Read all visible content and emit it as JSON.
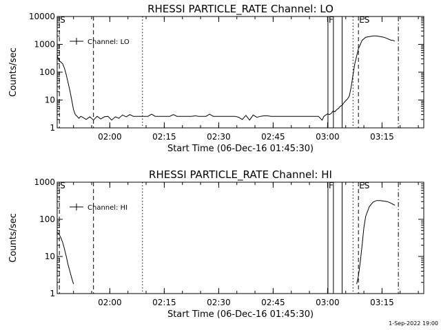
{
  "footer": {
    "timestamp": "1-Sep-2022 19:00"
  },
  "chart_data": [
    {
      "type": "line",
      "title": "RHESSI PARTICLE_RATE Channel: LO",
      "xlabel": "Start Time (06-Dec-16 01:45:30)",
      "ylabel": "Counts/sec",
      "yscale": "log",
      "ylim": [
        1,
        10000
      ],
      "xlim_min": [
        0,
        101
      ],
      "xtick_labels": [
        "02:00",
        "02:15",
        "02:30",
        "02:45",
        "03:00",
        "03:15"
      ],
      "xtick_min": [
        14.5,
        29.5,
        44.5,
        59.5,
        74.5,
        89.5
      ],
      "ytick_labels": [
        "1",
        "10",
        "100",
        "1000",
        "10000"
      ],
      "ytick_values": [
        1,
        10,
        100,
        1000,
        10000
      ],
      "grid": false,
      "legend_position": "top-left",
      "series": [
        {
          "name": "Channel: LO",
          "segments": [
            {
              "x": [
                0,
                0.5,
                1,
                1.5,
                2,
                2.5,
                3,
                3.5,
                4,
                4.5,
                5,
                5.5,
                6,
                6.5,
                7,
                8,
                9,
                10,
                11,
                12,
                13,
                14,
                15,
                16,
                17,
                18,
                19,
                20,
                21,
                22,
                23,
                24,
                25,
                26,
                27,
                28,
                29,
                30,
                31,
                32,
                33,
                34,
                35,
                36,
                37,
                38,
                39,
                40,
                41,
                42,
                43,
                44,
                45,
                46,
                47,
                48,
                49,
                50,
                51,
                52,
                53,
                54,
                55,
                56,
                57,
                58,
                59,
                60,
                61,
                62,
                63,
                64,
                65,
                66,
                67,
                68,
                69,
                70,
                71,
                72,
                73,
                73.5,
                74,
                74.5,
                75,
                75.5,
                76,
                76.5,
                77,
                77.5,
                78,
                78.5,
                79,
                79.5,
                80,
                80.5,
                81,
                81.5,
                82,
                83,
                84,
                85,
                86,
                87,
                88,
                89,
                90,
                91,
                92,
                92.5,
                93
              ],
              "y": [
                400,
                260,
                230,
                200,
                140,
                80,
                42,
                22,
                10,
                4.5,
                3.0,
                2.6,
                2.2,
                2.6,
                2.4,
                2.0,
                2.5,
                1.9,
                2.6,
                2.1,
                2.5,
                2.6,
                1.9,
                2.5,
                2.2,
                2.9,
                2.5,
                3.0,
                2.6,
                2.6,
                2.6,
                2.6,
                2.6,
                3.1,
                2.6,
                2.6,
                2.6,
                2.6,
                2.6,
                3.0,
                2.6,
                2.6,
                2.6,
                2.6,
                2.6,
                2.7,
                2.6,
                2.6,
                2.6,
                3.1,
                2.6,
                2.6,
                2.6,
                2.6,
                2.6,
                2.6,
                2.6,
                2.4,
                2.0,
                2.8,
                1.9,
                2.9,
                2.4,
                2.6,
                2.7,
                2.7,
                2.6,
                2.6,
                2.6,
                2.6,
                2.6,
                2.6,
                2.6,
                2.6,
                2.6,
                2.6,
                2.6,
                2.6,
                2.6,
                2.6,
                1.9,
                2.6,
                2.9,
                3.2,
                3.0,
                3.3,
                4.0,
                3.8,
                4.5,
                5.0,
                6.0,
                6.5,
                8.0,
                9.5,
                11,
                14,
                30,
                80,
                200,
                700,
                1400,
                1800,
                1900,
                2000,
                2000,
                1900,
                1800,
                1600,
                1400,
                1400,
                1300
              ]
            }
          ]
        }
      ],
      "annotations": [
        {
          "text": "S",
          "x_min": 0.6,
          "style": "dashed",
          "label": true
        },
        {
          "text": "",
          "x_min": 10,
          "style": "dashed"
        },
        {
          "text": "",
          "x_min": 23.5,
          "style": "dotted"
        },
        {
          "text": "F",
          "x_min": 74.6,
          "style": "solid",
          "label": true
        },
        {
          "text": "",
          "x_min": 76.1,
          "style": "solid"
        },
        {
          "text": "",
          "x_min": 78.5,
          "style": "solid"
        },
        {
          "text": "",
          "x_min": 81.5,
          "style": "dotted"
        },
        {
          "text": "ES",
          "x_min": 83.0,
          "style": "dashed",
          "label": true
        },
        {
          "text": "",
          "x_min": 94.0,
          "style": "dashdot"
        }
      ]
    },
    {
      "type": "line",
      "title": "RHESSI PARTICLE_RATE Channel: HI",
      "xlabel": "Start Time (06-Dec-16 01:45:30)",
      "ylabel": "Counts/sec",
      "yscale": "log",
      "ylim": [
        1,
        1000
      ],
      "xlim_min": [
        0,
        101
      ],
      "xtick_labels": [
        "02:00",
        "02:15",
        "02:30",
        "02:45",
        "03:00",
        "03:15"
      ],
      "xtick_min": [
        14.5,
        29.5,
        44.5,
        59.5,
        74.5,
        89.5
      ],
      "ytick_labels": [
        "1",
        "10",
        "100",
        "1000"
      ],
      "ytick_values": [
        1,
        10,
        100,
        1000
      ],
      "grid": false,
      "legend_position": "top-left",
      "series": [
        {
          "name": "Channel: HI",
          "segments": [
            {
              "x": [
                0,
                0.5,
                1,
                1.5,
                2,
                2.5,
                3,
                3.5,
                4,
                4.5
              ],
              "y": [
                45,
                40,
                32,
                24,
                16,
                10,
                6,
                4,
                2.6,
                1.8
              ]
            },
            {
              "x": [
                82.5,
                83,
                83.5,
                84,
                84.5,
                85,
                86,
                87,
                88,
                89,
                90,
                91,
                92,
                93
              ],
              "y": [
                1.8,
                3,
                7,
                20,
                60,
                120,
                220,
                290,
                320,
                320,
                310,
                300,
                270,
                240
              ]
            }
          ]
        }
      ],
      "annotations": [
        {
          "text": "S",
          "x_min": 0.6,
          "style": "dashed",
          "label": true
        },
        {
          "text": "",
          "x_min": 10,
          "style": "dashed"
        },
        {
          "text": "",
          "x_min": 23.5,
          "style": "dotted"
        },
        {
          "text": "F",
          "x_min": 74.6,
          "style": "solid",
          "label": true
        },
        {
          "text": "",
          "x_min": 76.1,
          "style": "solid"
        },
        {
          "text": "",
          "x_min": 78.5,
          "style": "solid"
        },
        {
          "text": "",
          "x_min": 81.5,
          "style": "dotted"
        },
        {
          "text": "ES",
          "x_min": 83.0,
          "style": "dashed",
          "label": true
        },
        {
          "text": "",
          "x_min": 94.0,
          "style": "dashdot"
        }
      ]
    }
  ]
}
